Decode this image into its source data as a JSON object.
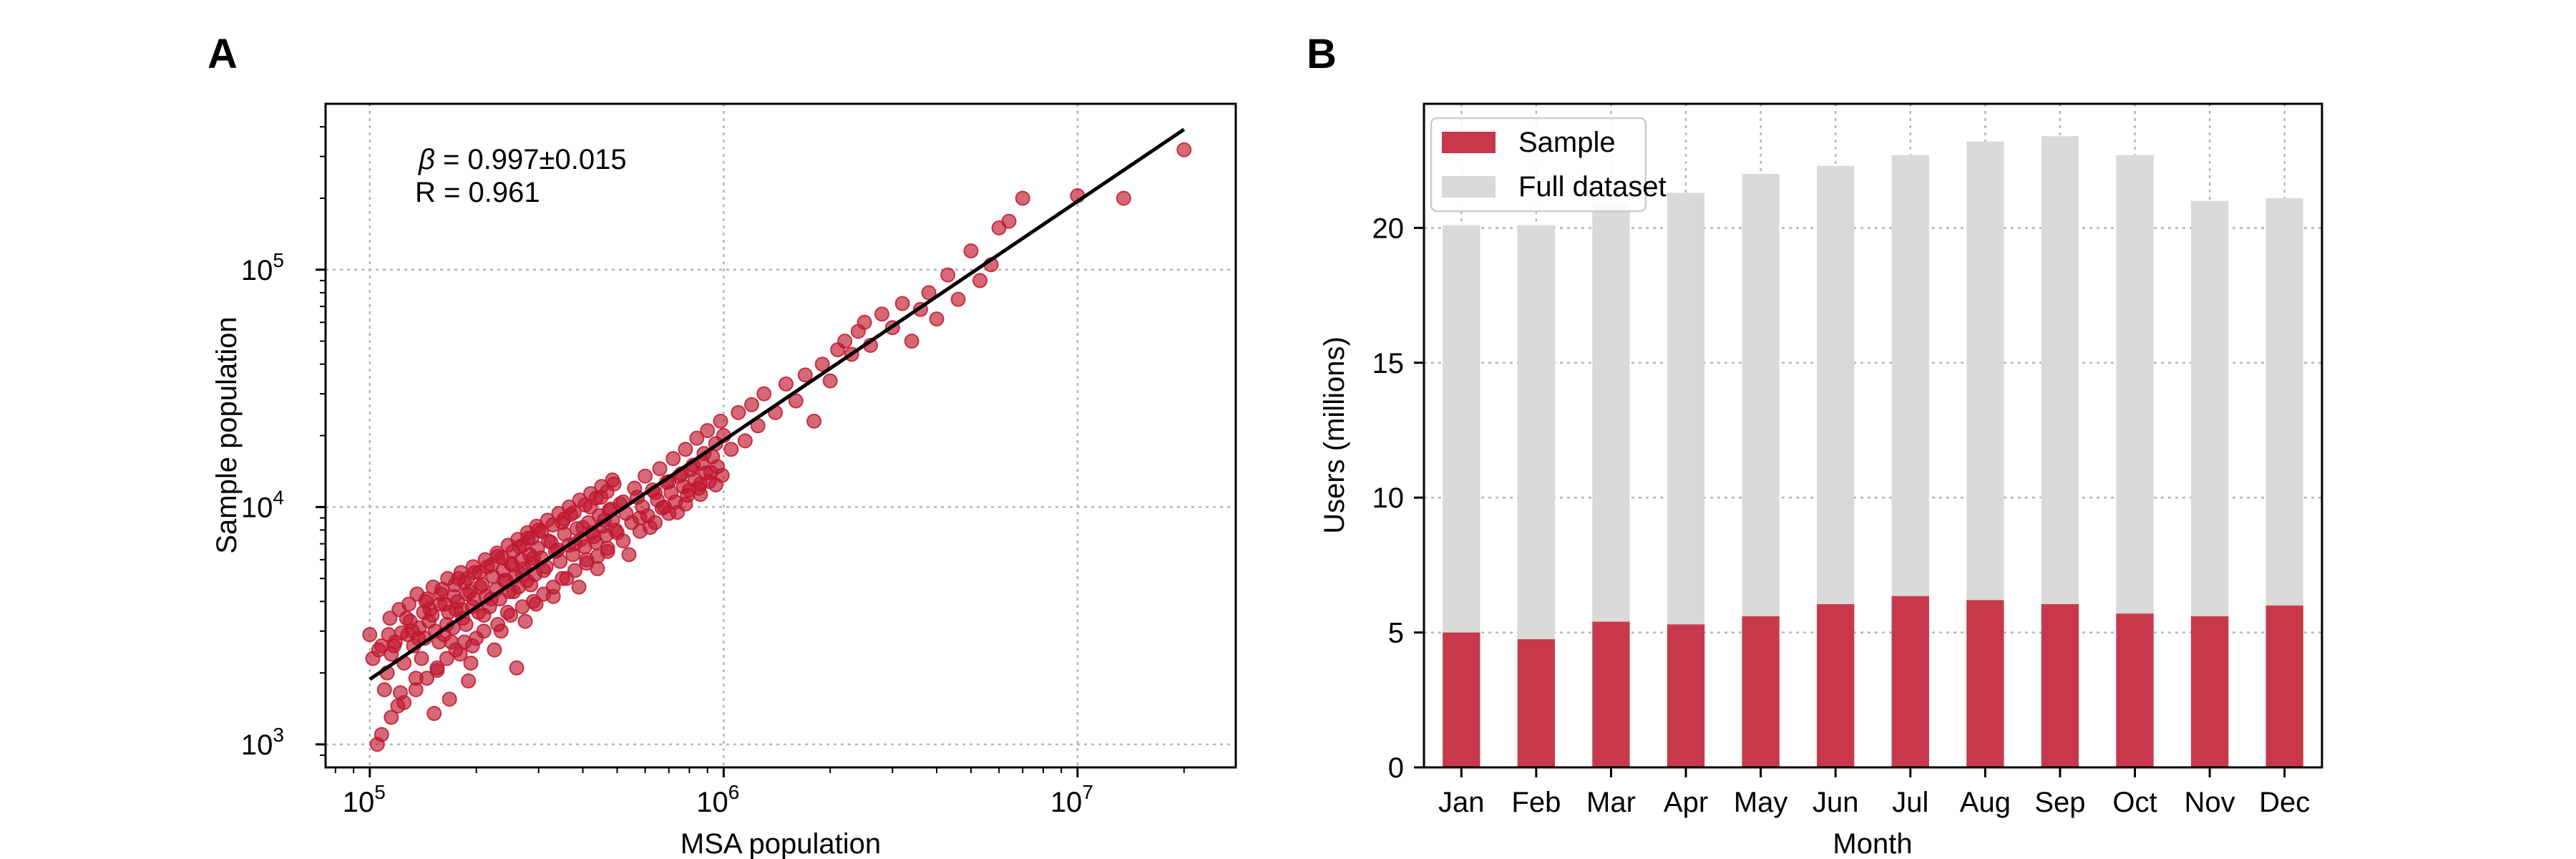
{
  "panels": {
    "a_label": "A",
    "b_label": "B"
  },
  "colors": {
    "sample": "#c7394a",
    "point": "#c0182f",
    "full": "#d9d9d9",
    "fit": "#000000"
  },
  "chart_data": [
    {
      "type": "scatter",
      "scale": "log-log",
      "xlabel": "MSA population",
      "ylabel": "Sample population",
      "xlim": [
        75000,
        28000000
      ],
      "ylim": [
        800,
        500000
      ],
      "x_ticks": [
        {
          "value": 100000,
          "base": "10",
          "exp": "5"
        },
        {
          "value": 1000000,
          "base": "10",
          "exp": "6"
        },
        {
          "value": 10000000,
          "base": "10",
          "exp": "7"
        }
      ],
      "y_ticks": [
        {
          "value": 1000,
          "base": "10",
          "exp": "3"
        },
        {
          "value": 10000,
          "base": "10",
          "exp": "4"
        },
        {
          "value": 100000,
          "base": "10",
          "exp": "5"
        }
      ],
      "grid": true,
      "annotations": {
        "beta_symbol": "β",
        "beta_text": " = 0.997±0.015",
        "r_text": "R = 0.961"
      },
      "fit_line": {
        "x": [
          100000,
          20000000
        ],
        "y": [
          1880,
          390000
        ]
      },
      "points": [
        [
          100000,
          2900
        ],
        [
          105000,
          1000
        ],
        [
          108000,
          1100
        ],
        [
          110000,
          1700
        ],
        [
          112000,
          2000
        ],
        [
          115000,
          2400
        ],
        [
          118000,
          2700
        ],
        [
          120000,
          1450
        ],
        [
          122000,
          1650
        ],
        [
          125000,
          2200
        ],
        [
          128000,
          2900
        ],
        [
          130000,
          3300
        ],
        [
          133000,
          2600
        ],
        [
          135000,
          1900
        ],
        [
          138000,
          3100
        ],
        [
          140000,
          2300
        ],
        [
          143000,
          2800
        ],
        [
          145000,
          4100
        ],
        [
          148000,
          3700
        ],
        [
          150000,
          3500
        ],
        [
          152000,
          1350
        ],
        [
          155000,
          2050
        ],
        [
          158000,
          3900
        ],
        [
          160000,
          4500
        ],
        [
          162000,
          2900
        ],
        [
          165000,
          3200
        ],
        [
          168000,
          1550
        ],
        [
          170000,
          2700
        ],
        [
          173000,
          4200
        ],
        [
          175000,
          3700
        ],
        [
          178000,
          5000
        ],
        [
          180000,
          2400
        ],
        [
          183000,
          3400
        ],
        [
          185000,
          4800
        ],
        [
          188000,
          4300
        ],
        [
          190000,
          1850
        ],
        [
          193000,
          2200
        ],
        [
          195000,
          3800
        ],
        [
          198000,
          5300
        ],
        [
          200000,
          2800
        ],
        [
          205000,
          4600
        ],
        [
          210000,
          3500
        ],
        [
          215000,
          5600
        ],
        [
          220000,
          4100
        ],
        [
          225000,
          2500
        ],
        [
          230000,
          6200
        ],
        [
          235000,
          3000
        ],
        [
          240000,
          4900
        ],
        [
          245000,
          3600
        ],
        [
          250000,
          5800
        ],
        [
          255000,
          4400
        ],
        [
          260000,
          2100
        ],
        [
          265000,
          6800
        ],
        [
          270000,
          5200
        ],
        [
          275000,
          3300
        ],
        [
          280000,
          7400
        ],
        [
          285000,
          4700
        ],
        [
          290000,
          6100
        ],
        [
          295000,
          3900
        ],
        [
          300000,
          8000
        ],
        [
          310000,
          5400
        ],
        [
          320000,
          7200
        ],
        [
          330000,
          4200
        ],
        [
          340000,
          6600
        ],
        [
          350000,
          8600
        ],
        [
          360000,
          5000
        ],
        [
          370000,
          9300
        ],
        [
          380000,
          7000
        ],
        [
          390000,
          4600
        ],
        [
          400000,
          8200
        ],
        [
          410000,
          6000
        ],
        [
          420000,
          10000
        ],
        [
          430000,
          7500
        ],
        [
          440000,
          5500
        ],
        [
          450000,
          11000
        ],
        [
          460000,
          8800
        ],
        [
          470000,
          6500
        ],
        [
          480000,
          9800
        ],
        [
          490000,
          12500
        ],
        [
          500000,
          7800
        ],
        [
          520000,
          10500
        ],
        [
          540000,
          6300
        ],
        [
          560000,
          12000
        ],
        [
          580000,
          9000
        ],
        [
          600000,
          13500
        ],
        [
          620000,
          8200
        ],
        [
          640000,
          11500
        ],
        [
          660000,
          14500
        ],
        [
          680000,
          10000
        ],
        [
          700000,
          12800
        ],
        [
          720000,
          16000
        ],
        [
          740000,
          9500
        ],
        [
          760000,
          13800
        ],
        [
          780000,
          17500
        ],
        [
          800000,
          11800
        ],
        [
          820000,
          15000
        ],
        [
          840000,
          19500
        ],
        [
          860000,
          12500
        ],
        [
          880000,
          16800
        ],
        [
          900000,
          21000
        ],
        [
          920000,
          14000
        ],
        [
          950000,
          18500
        ],
        [
          980000,
          23000
        ],
        [
          1000000,
          20000
        ],
        [
          1050000,
          17500
        ],
        [
          1100000,
          25000
        ],
        [
          1150000,
          19000
        ],
        [
          1200000,
          27000
        ],
        [
          1250000,
          22000
        ],
        [
          1300000,
          30000
        ],
        [
          1400000,
          25000
        ],
        [
          1500000,
          33000
        ],
        [
          1600000,
          28000
        ],
        [
          1700000,
          36000
        ],
        [
          1800000,
          23000
        ],
        [
          1900000,
          40000
        ],
        [
          2000000,
          34000
        ],
        [
          2100000,
          46000
        ],
        [
          2200000,
          50000
        ],
        [
          2300000,
          44000
        ],
        [
          2400000,
          55000
        ],
        [
          2500000,
          60000
        ],
        [
          2600000,
          48000
        ],
        [
          2800000,
          65000
        ],
        [
          3000000,
          57000
        ],
        [
          3200000,
          72000
        ],
        [
          3400000,
          50000
        ],
        [
          3600000,
          68000
        ],
        [
          3800000,
          80000
        ],
        [
          4000000,
          62000
        ],
        [
          4300000,
          95000
        ],
        [
          4600000,
          75000
        ],
        [
          5000000,
          120000
        ],
        [
          5300000,
          90000
        ],
        [
          5700000,
          105000
        ],
        [
          6000000,
          150000
        ],
        [
          6400000,
          160000
        ],
        [
          7000000,
          200000
        ],
        [
          10000000,
          205000
        ],
        [
          13500000,
          200000
        ],
        [
          20000000,
          320000
        ],
        [
          102000,
          2300
        ],
        [
          106000,
          2500
        ],
        [
          113000,
          2900
        ],
        [
          117000,
          2600
        ],
        [
          123000,
          2950
        ],
        [
          127000,
          3400
        ],
        [
          132000,
          3000
        ],
        [
          137000,
          2800
        ],
        [
          142000,
          3600
        ],
        [
          147000,
          3300
        ],
        [
          153000,
          3000
        ],
        [
          157000,
          2700
        ],
        [
          163000,
          3900
        ],
        [
          167000,
          3600
        ],
        [
          172000,
          3100
        ],
        [
          177000,
          4000
        ],
        [
          182000,
          3700
        ],
        [
          187000,
          3200
        ],
        [
          192000,
          4400
        ],
        [
          197000,
          4100
        ],
        [
          203000,
          3600
        ],
        [
          208000,
          4700
        ],
        [
          213000,
          4200
        ],
        [
          218000,
          3800
        ],
        [
          223000,
          5100
        ],
        [
          228000,
          4500
        ],
        [
          233000,
          4100
        ],
        [
          238000,
          5400
        ],
        [
          243000,
          4900
        ],
        [
          248000,
          4400
        ],
        [
          253000,
          5700
        ],
        [
          258000,
          5100
        ],
        [
          263000,
          4600
        ],
        [
          268000,
          6000
        ],
        [
          273000,
          5500
        ],
        [
          278000,
          4900
        ],
        [
          283000,
          6300
        ],
        [
          288000,
          5800
        ],
        [
          293000,
          5200
        ],
        [
          298000,
          6700
        ],
        [
          305000,
          6100
        ],
        [
          315000,
          5600
        ],
        [
          325000,
          7100
        ],
        [
          335000,
          6500
        ],
        [
          345000,
          5900
        ],
        [
          355000,
          7700
        ],
        [
          365000,
          6900
        ],
        [
          375000,
          6300
        ],
        [
          385000,
          8100
        ],
        [
          395000,
          7300
        ],
        [
          405000,
          6800
        ],
        [
          415000,
          8600
        ],
        [
          425000,
          7800
        ],
        [
          435000,
          7100
        ],
        [
          445000,
          9200
        ],
        [
          455000,
          8300
        ],
        [
          465000,
          7600
        ],
        [
          475000,
          9700
        ],
        [
          485000,
          8800
        ],
        [
          495000,
          8000
        ],
        [
          510000,
          10300
        ],
        [
          530000,
          9400
        ],
        [
          550000,
          8600
        ],
        [
          570000,
          11000
        ],
        [
          590000,
          10000
        ],
        [
          610000,
          9200
        ],
        [
          630000,
          11800
        ],
        [
          650000,
          10700
        ],
        [
          670000,
          9900
        ],
        [
          690000,
          12700
        ],
        [
          710000,
          11500
        ],
        [
          730000,
          10500
        ],
        [
          750000,
          13500
        ],
        [
          770000,
          12200
        ],
        [
          790000,
          11200
        ],
        [
          810000,
          14400
        ],
        [
          830000,
          13000
        ],
        [
          850000,
          12000
        ],
        [
          870000,
          15300
        ],
        [
          890000,
          13900
        ],
        [
          910000,
          12800
        ],
        [
          930000,
          16300
        ],
        [
          960000,
          14800
        ],
        [
          990000,
          13600
        ],
        [
          115000,
          1300
        ],
        [
          125000,
          1500
        ],
        [
          135000,
          1700
        ],
        [
          145000,
          1900
        ],
        [
          155000,
          2100
        ],
        [
          165000,
          2300
        ],
        [
          175000,
          2500
        ],
        [
          185000,
          2700
        ],
        [
          195000,
          2600
        ],
        [
          210000,
          3000
        ],
        [
          230000,
          3200
        ],
        [
          250000,
          3500
        ],
        [
          270000,
          3800
        ],
        [
          290000,
          4000
        ],
        [
          310000,
          4300
        ],
        [
          330000,
          4600
        ],
        [
          350000,
          5000
        ],
        [
          380000,
          5400
        ],
        [
          410000,
          5800
        ],
        [
          440000,
          6200
        ],
        [
          470000,
          6700
        ],
        [
          520000,
          7200
        ],
        [
          580000,
          7900
        ],
        [
          640000,
          8600
        ],
        [
          700000,
          9400
        ],
        [
          780000,
          10300
        ],
        [
          860000,
          11300
        ],
        [
          950000,
          12400
        ],
        [
          108000,
          2600
        ],
        [
          114000,
          3400
        ],
        [
          121000,
          3700
        ],
        [
          129000,
          3900
        ],
        [
          136000,
          4300
        ],
        [
          144000,
          4000
        ],
        [
          151000,
          4600
        ],
        [
          159000,
          4300
        ],
        [
          166000,
          5000
        ],
        [
          174000,
          4700
        ],
        [
          181000,
          5300
        ],
        [
          189000,
          5000
        ],
        [
          196000,
          5600
        ],
        [
          204000,
          5300
        ],
        [
          212000,
          6000
        ],
        [
          221000,
          5700
        ],
        [
          229000,
          6400
        ],
        [
          237000,
          6100
        ],
        [
          246000,
          6900
        ],
        [
          254000,
          6500
        ],
        [
          262000,
          7300
        ],
        [
          271000,
          6900
        ],
        [
          279000,
          7800
        ],
        [
          287000,
          7400
        ],
        [
          296000,
          8300
        ],
        [
          306000,
          7900
        ],
        [
          318000,
          8800
        ],
        [
          329000,
          8400
        ],
        [
          342000,
          9400
        ],
        [
          354000,
          8900
        ],
        [
          366000,
          10000
        ],
        [
          378000,
          9500
        ],
        [
          392000,
          10700
        ],
        [
          406000,
          10200
        ],
        [
          421000,
          11400
        ],
        [
          436000,
          10900
        ],
        [
          452000,
          12200
        ],
        [
          468000,
          11600
        ],
        [
          485000,
          13000
        ]
      ]
    },
    {
      "type": "bar",
      "stacked": "overlay",
      "xlabel": "Month",
      "ylabel": "Users (millions)",
      "ylim": [
        0,
        24.6
      ],
      "y_ticks": [
        "0",
        "5",
        "10",
        "15",
        "20"
      ],
      "grid": true,
      "legend_position": "top-left",
      "categories": [
        "Jan",
        "Feb",
        "Mar",
        "Apr",
        "May",
        "Jun",
        "Jul",
        "Aug",
        "Sep",
        "Oct",
        "Nov",
        "Dec"
      ],
      "series": [
        {
          "name": "Sample",
          "values": [
            5.0,
            4.75,
            5.4,
            5.3,
            5.6,
            6.05,
            6.35,
            6.2,
            6.05,
            5.7,
            5.6,
            6.0
          ]
        },
        {
          "name": "Full dataset",
          "values": [
            20.1,
            20.1,
            20.9,
            21.3,
            22.0,
            22.3,
            22.7,
            23.2,
            23.4,
            22.7,
            21.0,
            21.1
          ]
        }
      ]
    }
  ]
}
